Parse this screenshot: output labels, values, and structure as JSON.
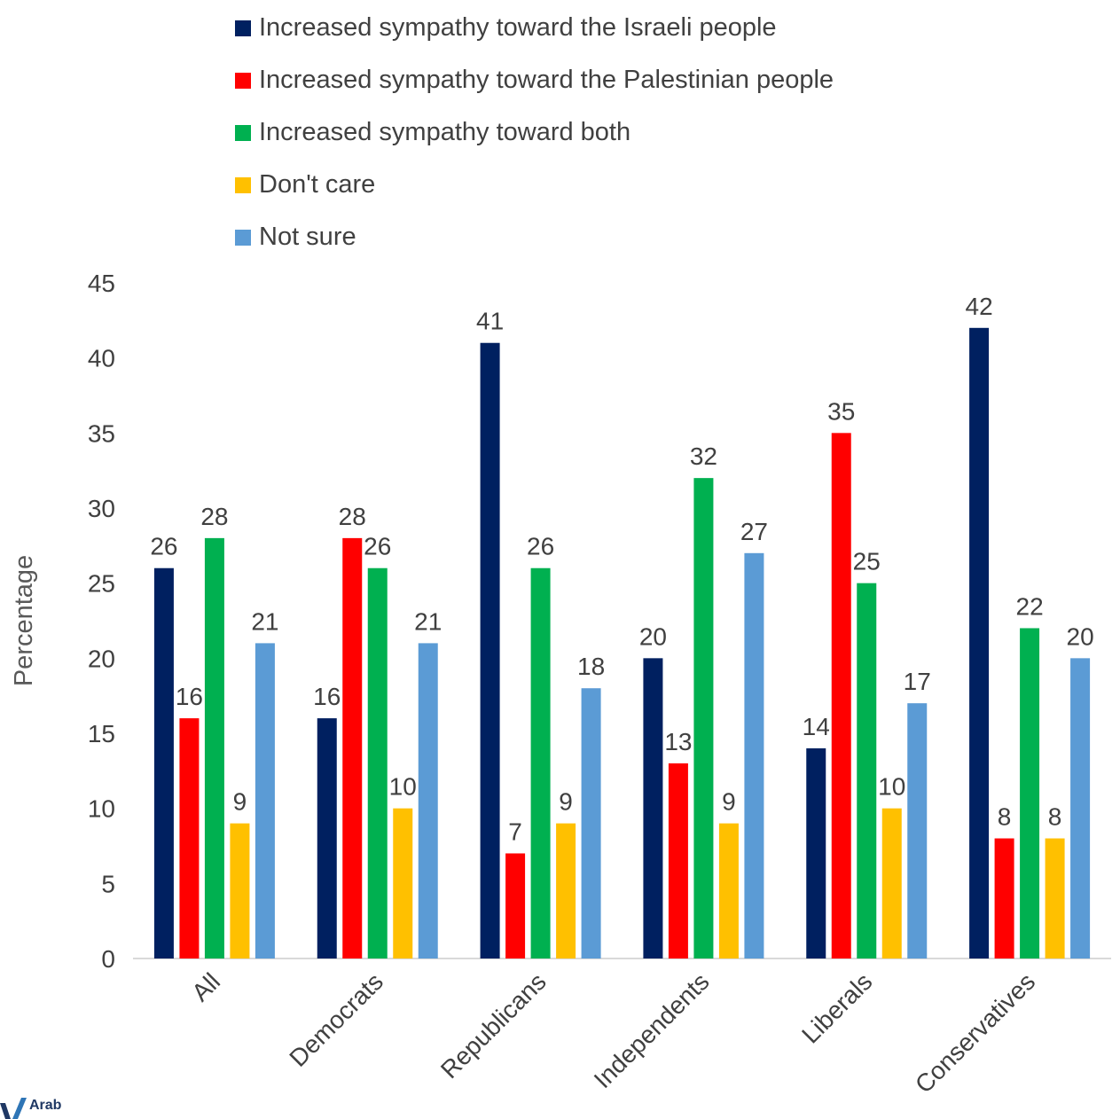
{
  "chart_data": {
    "type": "bar",
    "ylabel": "Percentage",
    "xlabel": "",
    "ylim": [
      0,
      45
    ],
    "yticks": [
      0,
      5,
      10,
      15,
      20,
      25,
      30,
      35,
      40,
      45
    ],
    "grid": false,
    "legend_position": "top",
    "categories": [
      "All",
      "Democrats",
      "Republicans",
      "Independents",
      "Liberals",
      "Conservatives"
    ],
    "series": [
      {
        "name": "Increased sympathy toward the Israeli people",
        "color": "#002060",
        "values": [
          26,
          16,
          41,
          20,
          14,
          42
        ]
      },
      {
        "name": "Increased sympathy toward the Palestinian people",
        "color": "#ff0000",
        "values": [
          16,
          28,
          7,
          13,
          35,
          8
        ]
      },
      {
        "name": "Increased sympathy toward both",
        "color": "#00b050",
        "values": [
          28,
          26,
          26,
          32,
          25,
          22
        ]
      },
      {
        "name": "Don't care",
        "color": "#ffc000",
        "values": [
          9,
          10,
          9,
          9,
          10,
          8
        ]
      },
      {
        "name": "Not sure",
        "color": "#5b9bd5",
        "values": [
          21,
          21,
          18,
          27,
          17,
          20
        ]
      }
    ]
  },
  "logo": {
    "text": "Arab"
  }
}
